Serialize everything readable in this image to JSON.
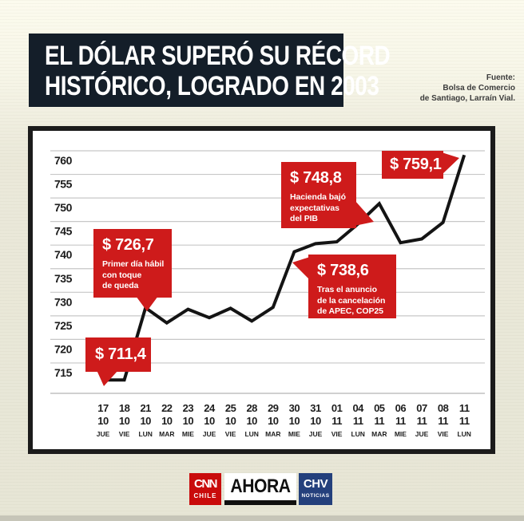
{
  "header": {
    "title_line1": "EL DÓLAR SUPERÓ SU RÉCORD",
    "title_line2": "HISTÓRICO, LOGRADO EN 2003",
    "source_line1": "Fuente:",
    "source_line2": "Bolsa de Comercio",
    "source_line3": "de Santiago, Larraín Vial."
  },
  "chart_data": {
    "type": "line",
    "title": "EL DÓLAR SUPERÓ SU RÉCORD HISTÓRICO, LOGRADO EN 2003",
    "xlabel": "",
    "ylabel": "",
    "ylim": [
      710,
      762
    ],
    "grid": true,
    "yticks": [
      760,
      755,
      750,
      745,
      740,
      735,
      730,
      725,
      720,
      715
    ],
    "days": [
      "17",
      "18",
      "21",
      "22",
      "23",
      "24",
      "25",
      "28",
      "29",
      "30",
      "31",
      "01",
      "04",
      "05",
      "06",
      "07",
      "08",
      "11"
    ],
    "months": [
      "10",
      "10",
      "10",
      "10",
      "10",
      "10",
      "10",
      "10",
      "10",
      "10",
      "10",
      "11",
      "11",
      "11",
      "11",
      "11",
      "11",
      "11"
    ],
    "weekdays": [
      "JUE",
      "VIE",
      "LUN",
      "MAR",
      "MIE",
      "JUE",
      "VIE",
      "LUN",
      "MAR",
      "MIE",
      "JUE",
      "VIE",
      "LUN",
      "MAR",
      "MIE",
      "JUE",
      "VIE",
      "LUN"
    ],
    "values": [
      711.4,
      711.4,
      726.7,
      723.5,
      726.4,
      724.6,
      726.6,
      723.9,
      726.8,
      738.6,
      740.3,
      740.7,
      744.5,
      748.8,
      740.5,
      741.3,
      744.8,
      759.1
    ],
    "annotations": [
      {
        "x": "17/10",
        "label": "$ 711,4",
        "note": ""
      },
      {
        "x": "21/10",
        "label": "$ 726,7",
        "note": "Primer día hábil con toque de queda"
      },
      {
        "x": "30/10",
        "label": "$ 738,6",
        "note": "Tras el anuncio de la cancelación de APEC, COP25"
      },
      {
        "x": "05/11",
        "label": "$ 748,8",
        "note": "Hacienda bajó expectativas del PIB"
      },
      {
        "x": "11/11",
        "label": "$ 759,1",
        "note": ""
      }
    ]
  },
  "callouts": {
    "c711": {
      "amount": "$ 711,4"
    },
    "c726": {
      "amount": "$ 726,7",
      "line1": "Primer día hábil",
      "line2": "con toque",
      "line3": "de queda"
    },
    "c748": {
      "amount": "$ 748,8",
      "line1": "Hacienda bajó",
      "line2": "expectativas",
      "line3": "del PIB"
    },
    "c738": {
      "amount": "$ 738,6",
      "line1": "Tras el anuncio",
      "line2": "de la cancelación",
      "line3": "de APEC, COP25"
    },
    "c759": {
      "amount": "$ 759,1"
    }
  },
  "footer": {
    "cnn_text": "CNN",
    "cnn_sub": "CHILE",
    "ahora_text": "AHORA",
    "chv_text": "CHV",
    "chv_sub": "NOTICIAS"
  },
  "colors": {
    "accent_red": "#ce1b1b",
    "title_bg": "#141e29",
    "line": "#141414",
    "grid": "#c7c7c7",
    "cnn_red": "#c90b0b",
    "chv_blue": "#24407c",
    "background": "#eceadb"
  }
}
